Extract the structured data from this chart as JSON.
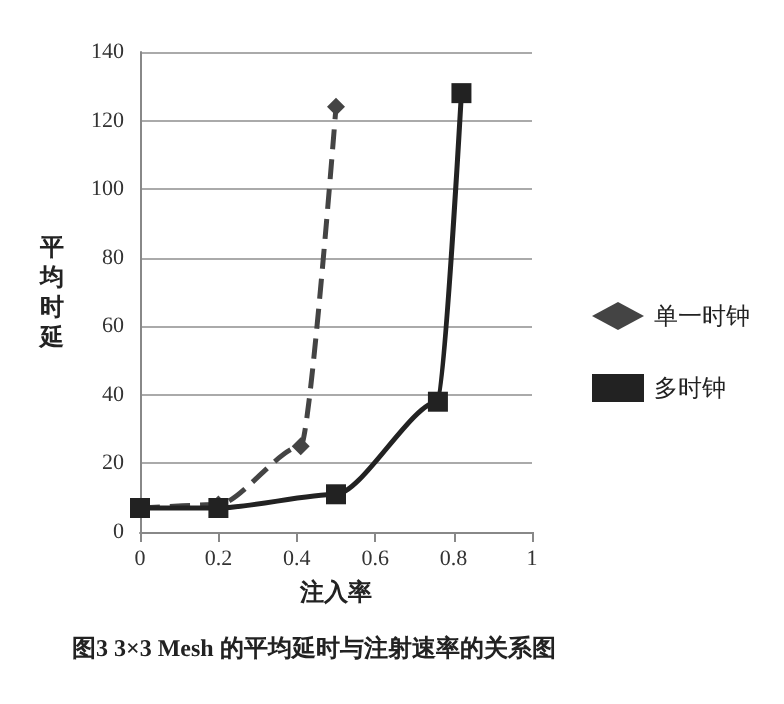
{
  "chart_data": {
    "type": "line",
    "xlabel": "注入率",
    "ylabel": "平均时延",
    "annotations": [
      "图3 3×3 Mesh 的平均延时与注射速率的关系图"
    ],
    "xlim": [
      0,
      1
    ],
    "xticks": [
      0,
      0.2,
      0.4,
      0.6,
      0.8,
      1
    ],
    "ylim": [
      0,
      140
    ],
    "yticks": [
      0,
      20,
      40,
      60,
      80,
      100,
      120,
      140
    ],
    "grid": "y",
    "legend": "right",
    "series": [
      {
        "name": "单一时钟",
        "color": "#444444",
        "x": [
          0,
          0.2,
          0.41,
          0.5
        ],
        "values": [
          7,
          8,
          25,
          124
        ],
        "marker": "diamond",
        "line_style": "dashed"
      },
      {
        "name": "多时钟",
        "color": "#222222",
        "x": [
          0,
          0.2,
          0.5,
          0.76,
          0.82
        ],
        "values": [
          7,
          7,
          11,
          38,
          128
        ],
        "marker": "square",
        "line_style": "solid"
      }
    ]
  }
}
